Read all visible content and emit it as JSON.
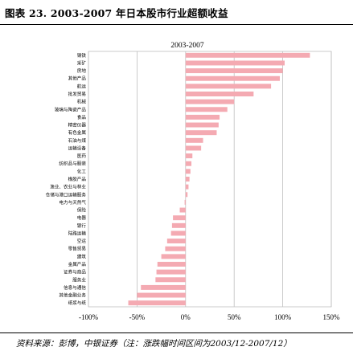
{
  "figure": {
    "title": "图表 23. 2003-2007 年日本股市行业超额收益",
    "source": "资料来源：彭博，中银证券（注：涨跌幅时间区间为2003/12-2007/12）"
  },
  "chart_data": {
    "type": "bar",
    "orientation": "horizontal",
    "title": "2003-2007",
    "xlabel": "",
    "ylabel": "",
    "xlim": [
      -1.0,
      1.5
    ],
    "xticks": [
      -1.0,
      -0.5,
      0.0,
      0.5,
      1.0,
      1.5
    ],
    "xtick_labels": [
      "-100%",
      "-50%",
      "0%",
      "50%",
      "100%",
      "150%"
    ],
    "grid": true,
    "legend": "none",
    "bar_color": "#f4aab2",
    "categories": [
      "钢铁",
      "采矿",
      "房地",
      "其他产品",
      "航运",
      "批发贸易",
      "机械",
      "玻璃与陶瓷产品",
      "食品",
      "精密仪器",
      "有色金属",
      "石油与煤",
      "运输设备",
      "医药",
      "纺织品与服装",
      "化工",
      "橡胶产品",
      "渔业、农业与林业",
      "仓储与港口运输服务",
      "电力与天然气",
      "保险",
      "电器",
      "银行",
      "陆路运输",
      "空运",
      "零售贸易",
      "建筑",
      "金属产品",
      "证券与商品",
      "服务业",
      "信息与通信",
      "其他金融业务",
      "纸浆与纸"
    ],
    "values": [
      1.28,
      1.02,
      1.0,
      0.97,
      0.88,
      0.7,
      0.5,
      0.43,
      0.35,
      0.34,
      0.32,
      0.18,
      0.16,
      0.07,
      0.06,
      0.05,
      0.04,
      0.03,
      0.02,
      -0.01,
      -0.06,
      -0.13,
      -0.14,
      -0.15,
      -0.19,
      -0.21,
      -0.25,
      -0.29,
      -0.3,
      -0.31,
      -0.46,
      -0.5,
      -0.59
    ]
  }
}
